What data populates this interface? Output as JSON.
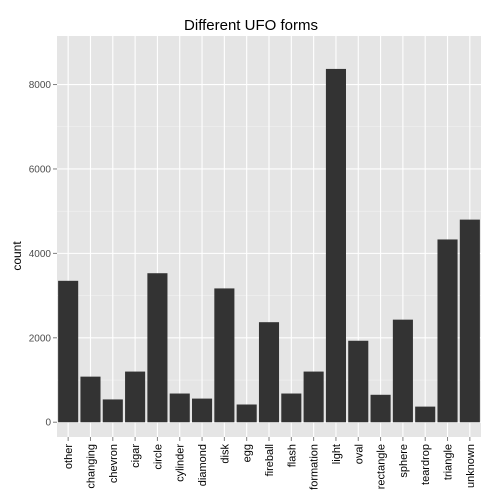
{
  "chart_data": {
    "type": "bar",
    "title": "Different UFO forms",
    "xlabel": "",
    "ylabel": "count",
    "categories": [
      "other",
      "changing",
      "chevron",
      "cigar",
      "circle",
      "cylinder",
      "diamond",
      "disk",
      "egg",
      "fireball",
      "flash",
      "formation",
      "light",
      "oval",
      "rectangle",
      "sphere",
      "teardrop",
      "triangle",
      "unknown"
    ],
    "values": [
      3350,
      1080,
      540,
      1200,
      3530,
      680,
      560,
      3170,
      420,
      2370,
      680,
      1200,
      8370,
      1930,
      650,
      2430,
      370,
      4330,
      4800
    ],
    "ylim": [
      -350,
      9150
    ],
    "yticks": [
      "0",
      "2000",
      "4000",
      "6000",
      "8000"
    ],
    "grid": true,
    "legend": "none",
    "colors": {
      "panel": "#e5e5e5",
      "grid_major": "#ffffff",
      "grid_minor": "#f2f2f2",
      "bar": "#333333"
    }
  }
}
